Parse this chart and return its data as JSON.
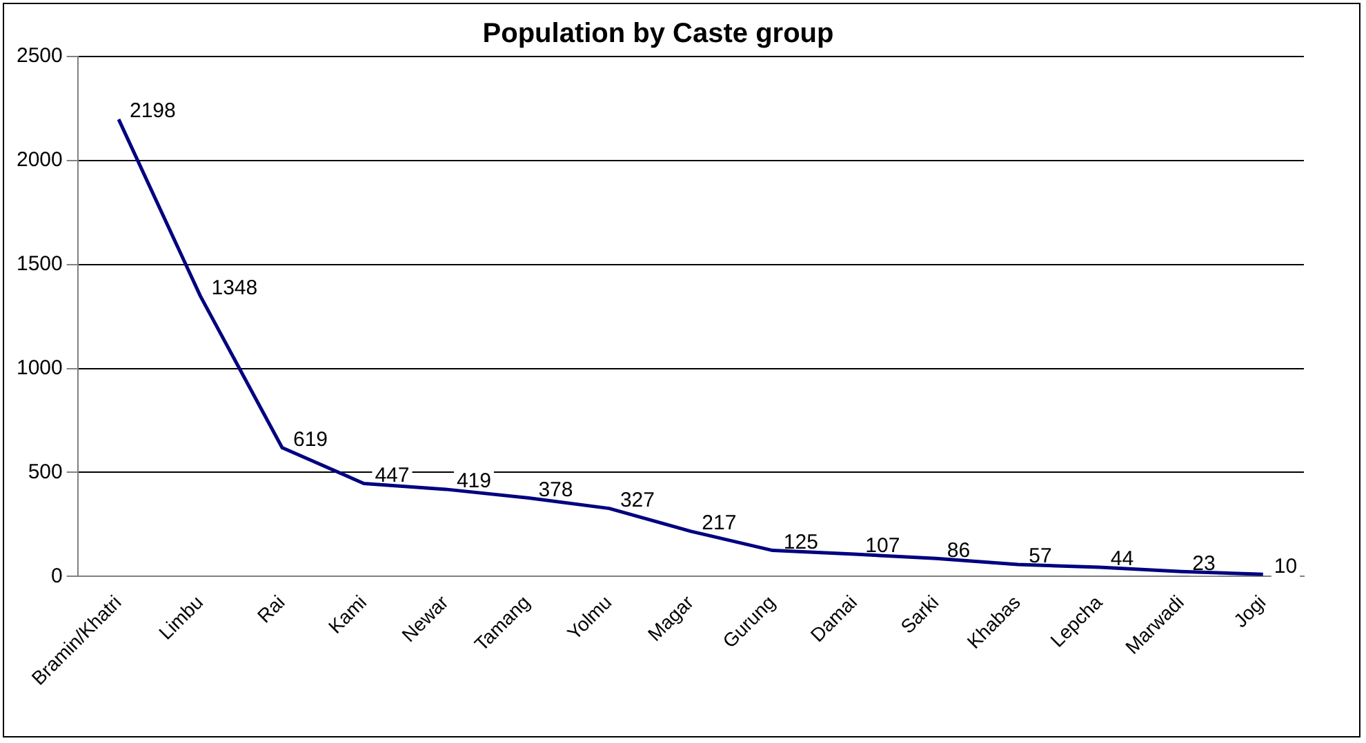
{
  "chart_data": {
    "type": "line",
    "title": "Population by Caste group",
    "categories": [
      "Bramin/Khatri",
      "Limbu",
      "Rai",
      "Kami",
      "Newar",
      "Tamang",
      "Yolmu",
      "Magar",
      "Gurung",
      "Damai",
      "Sarki",
      "Khabas",
      "Lepcha",
      "Marwadi",
      "Jogi"
    ],
    "series": [
      {
        "color": "#000080",
        "values": [
          2198,
          1348,
          619,
          447,
          419,
          378,
          327,
          217,
          125,
          107,
          86,
          57,
          44,
          23,
          10
        ]
      }
    ],
    "ylim": [
      0,
      2500
    ],
    "yticks": [
      0,
      500,
      1000,
      1500,
      2000,
      2500
    ],
    "grid": "y",
    "legend": false,
    "marker": "none",
    "line_style": "solid",
    "data_labels": true
  }
}
